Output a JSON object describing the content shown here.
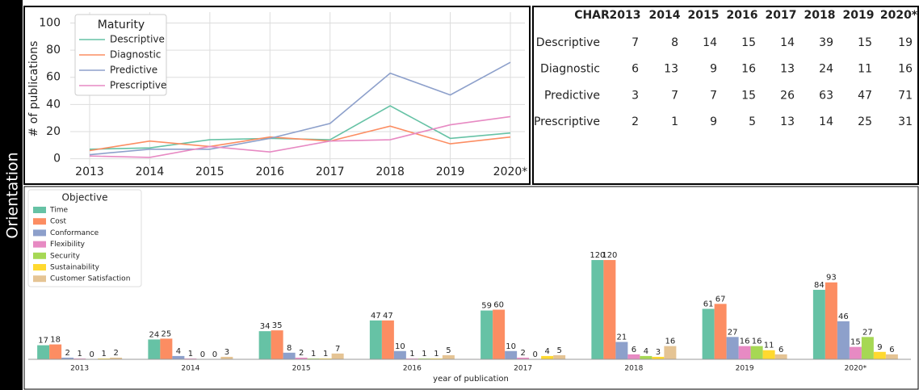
{
  "label": "Orientation",
  "chart_data": [
    {
      "type": "line",
      "ylabel": "# of publications",
      "legend_title": "Maturity",
      "categories": [
        "2013",
        "2014",
        "2015",
        "2016",
        "2017",
        "2018",
        "2019",
        "2020*"
      ],
      "series": [
        {
          "name": "Descriptive",
          "color": "#66c2a5",
          "values": [
            7,
            8,
            14,
            15,
            14,
            39,
            15,
            19
          ]
        },
        {
          "name": "Diagnostic",
          "color": "#fc8d62",
          "values": [
            6,
            13,
            9,
            16,
            13,
            24,
            11,
            16
          ]
        },
        {
          "name": "Predictive",
          "color": "#8da0cb",
          "values": [
            3,
            7,
            7,
            15,
            26,
            63,
            47,
            71
          ]
        },
        {
          "name": "Prescriptive",
          "color": "#e78ac3",
          "values": [
            2,
            1,
            9,
            5,
            13,
            14,
            25,
            31
          ]
        }
      ],
      "ylim": [
        -5,
        108
      ],
      "yticks": [
        0,
        20,
        40,
        60,
        80,
        100
      ],
      "grid": true
    },
    {
      "type": "bar",
      "xlabel": "year of publication",
      "legend_title": "Objective",
      "categories": [
        "2013",
        "2014",
        "2015",
        "2016",
        "2017",
        "2018",
        "2019",
        "2020*"
      ],
      "series": [
        {
          "name": "Time",
          "color": "#66c2a5",
          "values": [
            17,
            24,
            34,
            47,
            59,
            120,
            61,
            84
          ]
        },
        {
          "name": "Cost",
          "color": "#fc8d62",
          "values": [
            18,
            25,
            35,
            47,
            60,
            120,
            67,
            93
          ]
        },
        {
          "name": "Conformance",
          "color": "#8da0cb",
          "values": [
            2,
            4,
            8,
            10,
            10,
            21,
            27,
            46
          ]
        },
        {
          "name": "Flexibility",
          "color": "#e78ac3",
          "values": [
            1,
            1,
            2,
            1,
            2,
            6,
            16,
            15
          ]
        },
        {
          "name": "Security",
          "color": "#a6d854",
          "values": [
            0,
            0,
            1,
            1,
            0,
            4,
            16,
            27
          ]
        },
        {
          "name": "Sustainability",
          "color": "#ffd92f",
          "values": [
            1,
            0,
            1,
            1,
            4,
            3,
            11,
            9
          ]
        },
        {
          "name": "Customer Satisfaction",
          "color": "#e5c494",
          "values": [
            2,
            3,
            7,
            5,
            5,
            16,
            6,
            6
          ]
        }
      ],
      "ylim": [
        0,
        122
      ]
    }
  ],
  "table": {
    "header": [
      "CHAR",
      "2013",
      "2014",
      "2015",
      "2016",
      "2017",
      "2018",
      "2019",
      "2020*"
    ],
    "rows": [
      [
        "Descriptive",
        "7",
        "8",
        "14",
        "15",
        "14",
        "39",
        "15",
        "19"
      ],
      [
        "Diagnostic",
        "6",
        "13",
        "9",
        "16",
        "13",
        "24",
        "11",
        "16"
      ],
      [
        "Predictive",
        "3",
        "7",
        "7",
        "15",
        "26",
        "63",
        "47",
        "71"
      ],
      [
        "Prescriptive",
        "2",
        "1",
        "9",
        "5",
        "13",
        "14",
        "25",
        "31"
      ]
    ]
  }
}
